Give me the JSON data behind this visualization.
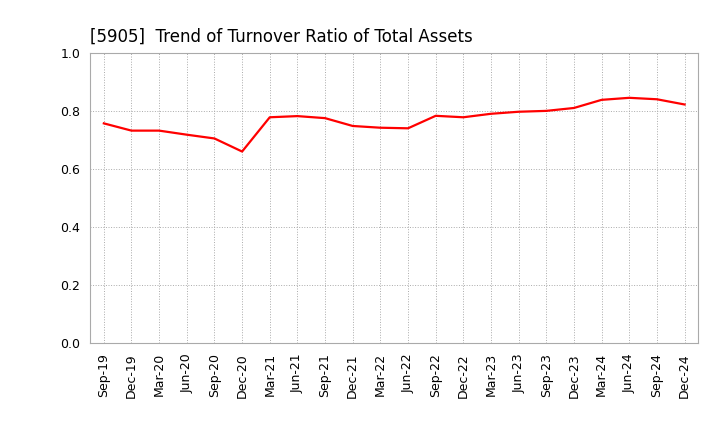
{
  "title": "[5905]  Trend of Turnover Ratio of Total Assets",
  "x_labels": [
    "Sep-19",
    "Dec-19",
    "Mar-20",
    "Jun-20",
    "Sep-20",
    "Dec-20",
    "Mar-21",
    "Jun-21",
    "Sep-21",
    "Dec-21",
    "Mar-22",
    "Jun-22",
    "Sep-22",
    "Dec-22",
    "Mar-23",
    "Jun-23",
    "Sep-23",
    "Dec-23",
    "Mar-24",
    "Jun-24",
    "Sep-24",
    "Dec-24"
  ],
  "y_values": [
    0.757,
    0.732,
    0.732,
    0.718,
    0.705,
    0.66,
    0.778,
    0.782,
    0.775,
    0.748,
    0.742,
    0.74,
    0.783,
    0.778,
    0.79,
    0.797,
    0.8,
    0.81,
    0.838,
    0.845,
    0.84,
    0.822
  ],
  "ylim": [
    0.0,
    1.0
  ],
  "yticks": [
    0.0,
    0.2,
    0.4,
    0.6,
    0.8,
    1.0
  ],
  "line_color": "#FF0000",
  "line_width": 1.6,
  "grid_color": "#AAAAAA",
  "grid_linestyle": ":",
  "bg_color": "#FFFFFF",
  "title_fontsize": 12,
  "tick_fontsize": 9
}
